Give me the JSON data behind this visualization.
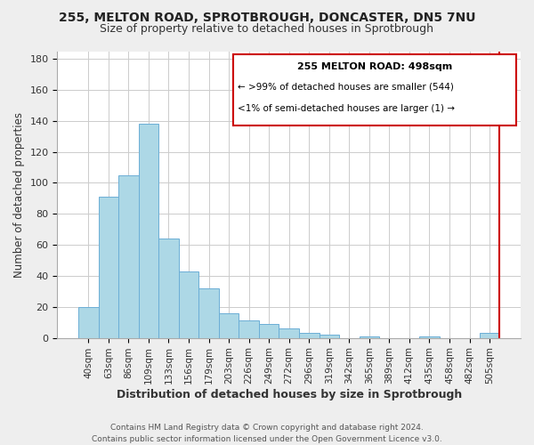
{
  "title": "255, MELTON ROAD, SPROTBROUGH, DONCASTER, DN5 7NU",
  "subtitle": "Size of property relative to detached houses in Sprotbrough",
  "xlabel": "Distribution of detached houses by size in Sprotbrough",
  "ylabel": "Number of detached properties",
  "categories": [
    "40sqm",
    "63sqm",
    "86sqm",
    "109sqm",
    "133sqm",
    "156sqm",
    "179sqm",
    "203sqm",
    "226sqm",
    "249sqm",
    "272sqm",
    "296sqm",
    "319sqm",
    "342sqm",
    "365sqm",
    "389sqm",
    "412sqm",
    "435sqm",
    "458sqm",
    "482sqm",
    "505sqm"
  ],
  "values": [
    20,
    91,
    105,
    138,
    64,
    43,
    32,
    16,
    11,
    9,
    6,
    3,
    2,
    0,
    1,
    0,
    0,
    1,
    0,
    0,
    3
  ],
  "bar_color": "#add8e6",
  "bar_edge_color": "#6baed6",
  "ylim": [
    0,
    185
  ],
  "yticks": [
    0,
    20,
    40,
    60,
    80,
    100,
    120,
    140,
    160,
    180
  ],
  "legend_title": "255 MELTON ROAD: 498sqm",
  "legend_line1": ">99% of detached houses are smaller (544)",
  "legend_line2": "<1% of semi-detached houses are larger (1)",
  "footer": "Contains HM Land Registry data © Crown copyright and database right 2024.\nContains public sector information licensed under the Open Government Licence v3.0.",
  "background_color": "#eeeeee",
  "plot_background": "#ffffff",
  "grid_color": "#cccccc",
  "red_line_color": "#cc0000",
  "title_fontsize": 10,
  "subtitle_fontsize": 9
}
